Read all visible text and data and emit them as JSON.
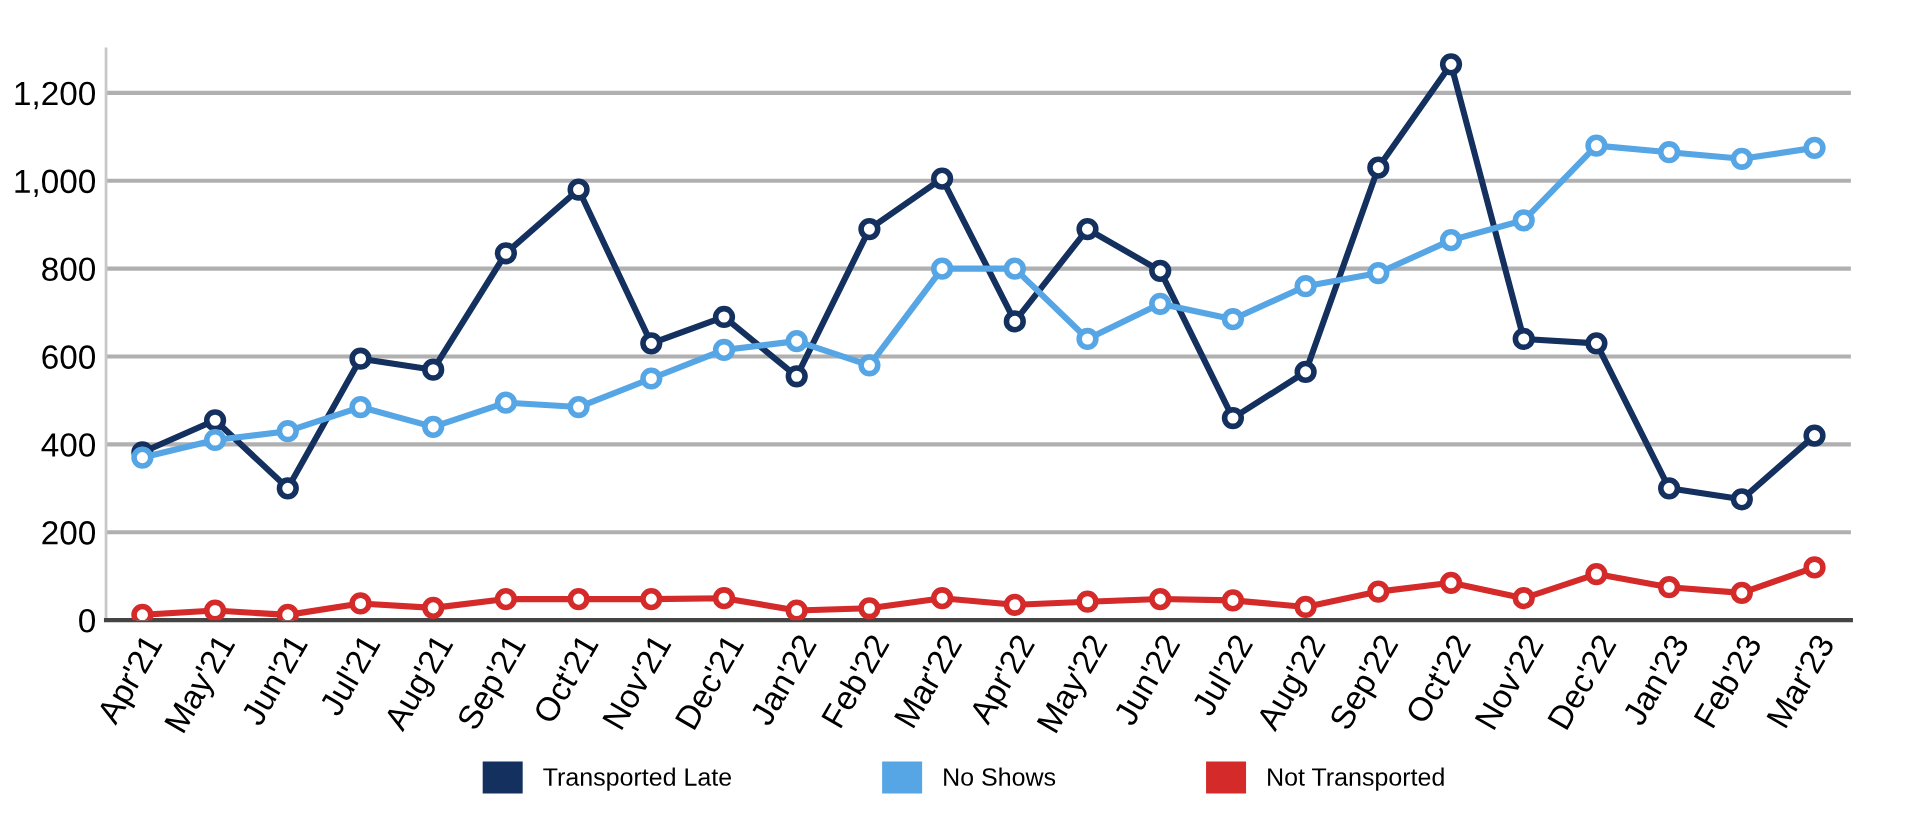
{
  "chart_data": {
    "type": "line",
    "categories": [
      "Apr'21",
      "May'21",
      "Jun'21",
      "Jul'21",
      "Aug'21",
      "Sep'21",
      "Oct'21",
      "Nov'21",
      "Dec'21",
      "Jan'22",
      "Feb'22",
      "Mar'22",
      "Apr'22",
      "May'22",
      "Jun'22",
      "Jul'22",
      "Aug'22",
      "Sep'22",
      "Oct'22",
      "Nov'22",
      "Dec'22",
      "Jan'23",
      "Feb'23",
      "Mar'23"
    ],
    "series": [
      {
        "name": "Transported Late",
        "color": "#13305f",
        "values": [
          382,
          455,
          300,
          595,
          570,
          835,
          980,
          630,
          690,
          555,
          890,
          1005,
          680,
          890,
          795,
          460,
          565,
          1030,
          1265,
          640,
          630,
          300,
          275,
          420
        ]
      },
      {
        "name": "No Shows",
        "color": "#56a5e5",
        "values": [
          370,
          410,
          430,
          485,
          440,
          495,
          485,
          550,
          615,
          635,
          580,
          800,
          800,
          640,
          720,
          685,
          760,
          790,
          865,
          910,
          1080,
          1065,
          1050,
          1075
        ]
      },
      {
        "name": "Not Transported",
        "color": "#d42a2a",
        "values": [
          12,
          22,
          12,
          38,
          28,
          48,
          48,
          48,
          50,
          22,
          27,
          50,
          35,
          42,
          48,
          45,
          30,
          65,
          85,
          50,
          105,
          75,
          62,
          120
        ]
      }
    ],
    "ylim": [
      0,
      1300
    ],
    "yticks": [
      0,
      {
        "value": 200,
        "label": "200"
      },
      {
        "value": 400,
        "label": "400"
      },
      {
        "value": 600,
        "label": "600"
      },
      {
        "value": 800,
        "label": "800"
      },
      {
        "value": 1000,
        "label": "1,000"
      },
      {
        "value": 1200,
        "label": "1,200"
      }
    ],
    "grid": "y",
    "legend": "bottom",
    "marker": "circle",
    "line_style": "solid"
  }
}
